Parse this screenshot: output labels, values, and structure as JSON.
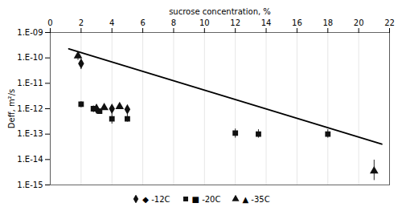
{
  "chart_data": {
    "type": "scatter",
    "xlabel": "sucrose concentration, %",
    "ylabel": "Deff, m²/s",
    "log": "y",
    "grid": "x",
    "legend": "bottom",
    "xlim": [
      0,
      22
    ],
    "xticks": [
      0,
      2,
      4,
      6,
      8,
      10,
      12,
      14,
      16,
      18,
      20,
      22
    ],
    "ylim": [
      1e-15,
      1e-09
    ],
    "yticks": [
      {
        "value": 1e-15,
        "label": "1.E-15"
      },
      {
        "value": 1e-14,
        "label": "1.E-14"
      },
      {
        "value": 1e-13,
        "label": "1.E-13"
      },
      {
        "value": 1e-12,
        "label": "1.E-12"
      },
      {
        "value": 1e-11,
        "label": "1.E-11"
      },
      {
        "value": 1e-10,
        "label": "1.E-10"
      },
      {
        "value": 1e-09,
        "label": "1.E-09"
      }
    ],
    "series": [
      {
        "type": "line",
        "color": "#000000",
        "line_style": "solid",
        "x": [
          1.2,
          21.5
        ],
        "values": [
          2.2722e-10,
          4.0421e-14
        ]
      },
      {
        "name": "◆ -12C",
        "type": "scatter",
        "marker": "diamond",
        "color": "#111111",
        "x": [
          2.0,
          3.0,
          4.0,
          5.0
        ],
        "values": [
          6e-11,
          1e-12,
          1e-12,
          9.5e-13
        ],
        "yerr_lo": [
          2.5e-11,
          2e-13,
          2e-13,
          2e-13
        ],
        "yerr_hi": [
          2.5e-11,
          4e-13,
          3e-13,
          3e-13
        ]
      },
      {
        "name": "■ -20C",
        "type": "scatter",
        "marker": "square",
        "color": "#111111",
        "x": [
          2.0,
          2.8,
          3.2,
          4.0,
          5.0,
          12.0,
          13.5,
          18.0
        ],
        "values": [
          1.5e-12,
          1e-12,
          8e-13,
          4e-13,
          4e-13,
          1.1e-13,
          1e-13,
          1e-13
        ],
        "yerr_lo": [
          4e-13,
          3e-13,
          2e-13,
          1.5e-13,
          1e-13,
          4e-14,
          3e-14,
          3e-14
        ],
        "yerr_hi": [
          4e-13,
          3e-13,
          2e-13,
          6e-13,
          2e-13,
          5e-14,
          5e-14,
          5e-14
        ]
      },
      {
        "name": "▲ -35C",
        "type": "scatter",
        "marker": "triangle",
        "color": "#111111",
        "x": [
          1.8,
          3.5,
          4.5,
          21.0
        ],
        "values": [
          1.2e-10,
          1.1e-12,
          1.2e-12,
          3.5e-15
        ],
        "yerr_lo": [
          4e-11,
          2e-13,
          2e-13,
          2e-15
        ],
        "yerr_hi": [
          4e-11,
          4e-13,
          4e-13,
          6e-15
        ]
      }
    ]
  }
}
